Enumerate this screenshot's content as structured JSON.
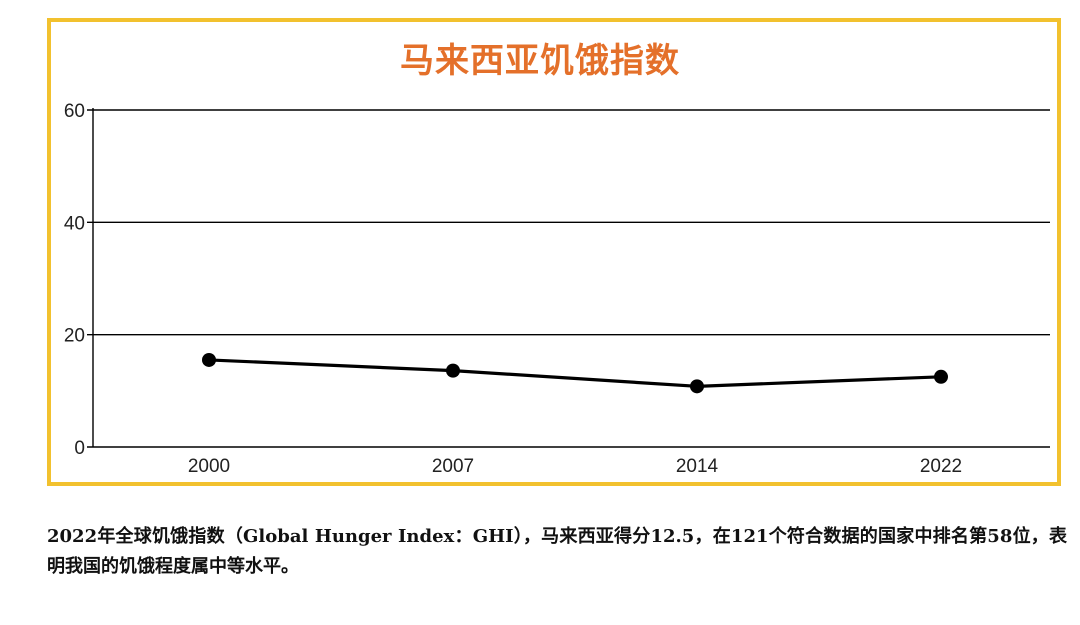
{
  "chart_data": {
    "type": "line",
    "title": "马来西亚饥饿指数",
    "categories": [
      "2000",
      "2007",
      "2014",
      "2022"
    ],
    "series": [
      {
        "values": [
          15.5,
          13.6,
          10.8,
          12.5
        ]
      }
    ],
    "ylim": [
      0,
      60
    ],
    "yticks": [
      0,
      20,
      40,
      60
    ],
    "xlabel": "",
    "ylabel": "",
    "grid": true,
    "colors": {
      "title": "#e4702a",
      "frame": "#f2c12e",
      "line": "#000000"
    }
  },
  "caption": "2022年全球饥饿指数（Global Hunger Index：GHI），马来西亚得分12.5，在121个符合数据的国家中排名第58位，表明我国的饥饿程度属中等水平。"
}
